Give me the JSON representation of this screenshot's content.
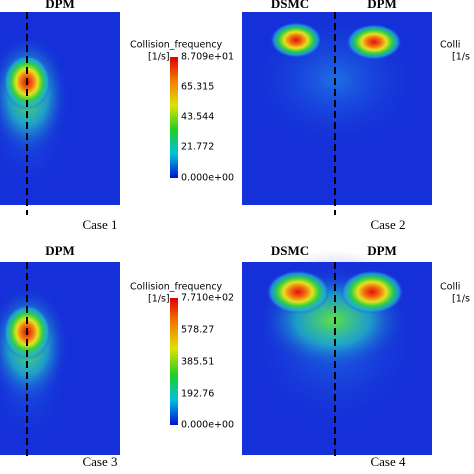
{
  "panels": [
    {
      "labels": [
        "DPM"
      ],
      "caption": "Case 1"
    },
    {
      "labels": [
        "DSMC",
        "DPM"
      ],
      "caption": "Case 2"
    },
    {
      "labels": [
        "DPM"
      ],
      "caption": "Case 3"
    },
    {
      "labels": [
        "DSMC",
        "DPM"
      ],
      "caption": "Case 4"
    }
  ],
  "colorbars": [
    {
      "title": "Collision_frequency",
      "unit": "[1/s]",
      "ticks": [
        "8.709e+01",
        "65.315",
        "43.544",
        "21.772",
        "0.000e+00"
      ]
    },
    {
      "title": "Collision_frequency",
      "unit": "[1/s]",
      "ticks": [
        "7.710e+02",
        "578.27",
        "385.51",
        "192.76",
        "0.000e+00"
      ]
    }
  ],
  "cut_labels": [
    {
      "title": "Colli",
      "unit": "[1/s"
    },
    {
      "title": "Colli",
      "unit": "[1/s"
    }
  ]
}
